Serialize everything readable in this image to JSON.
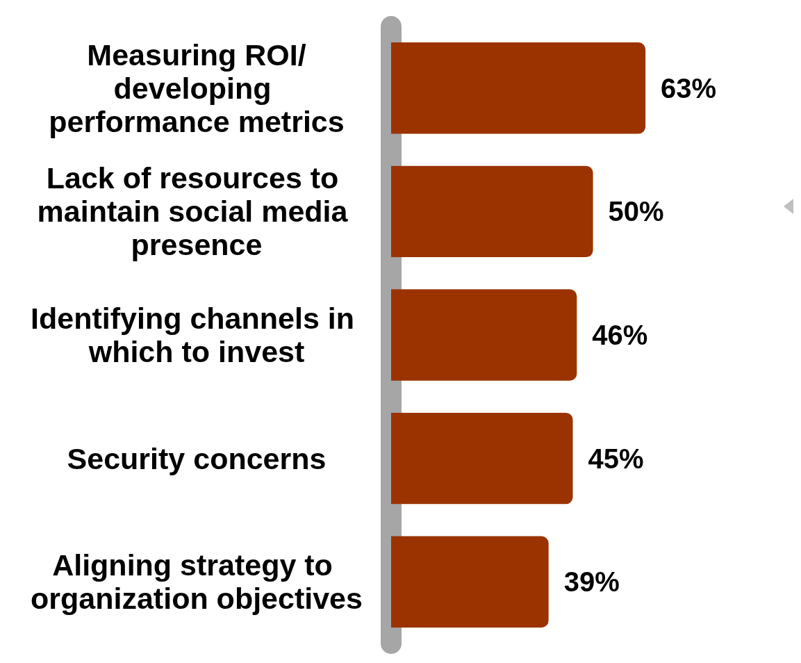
{
  "chart_data": {
    "type": "bar",
    "orientation": "horizontal",
    "categories": [
      "Measuring ROI/developing performance metrics",
      "Lack of resources to maintain social media presence",
      "Identifying channels in which to invest",
      "Security concerns",
      "Aligning strategy to organization objectives"
    ],
    "values": [
      63,
      50,
      46,
      45,
      39
    ],
    "value_labels": [
      "63%",
      "50%",
      "46%",
      "45%",
      "39%"
    ],
    "color": "#9a3300"
  }
}
